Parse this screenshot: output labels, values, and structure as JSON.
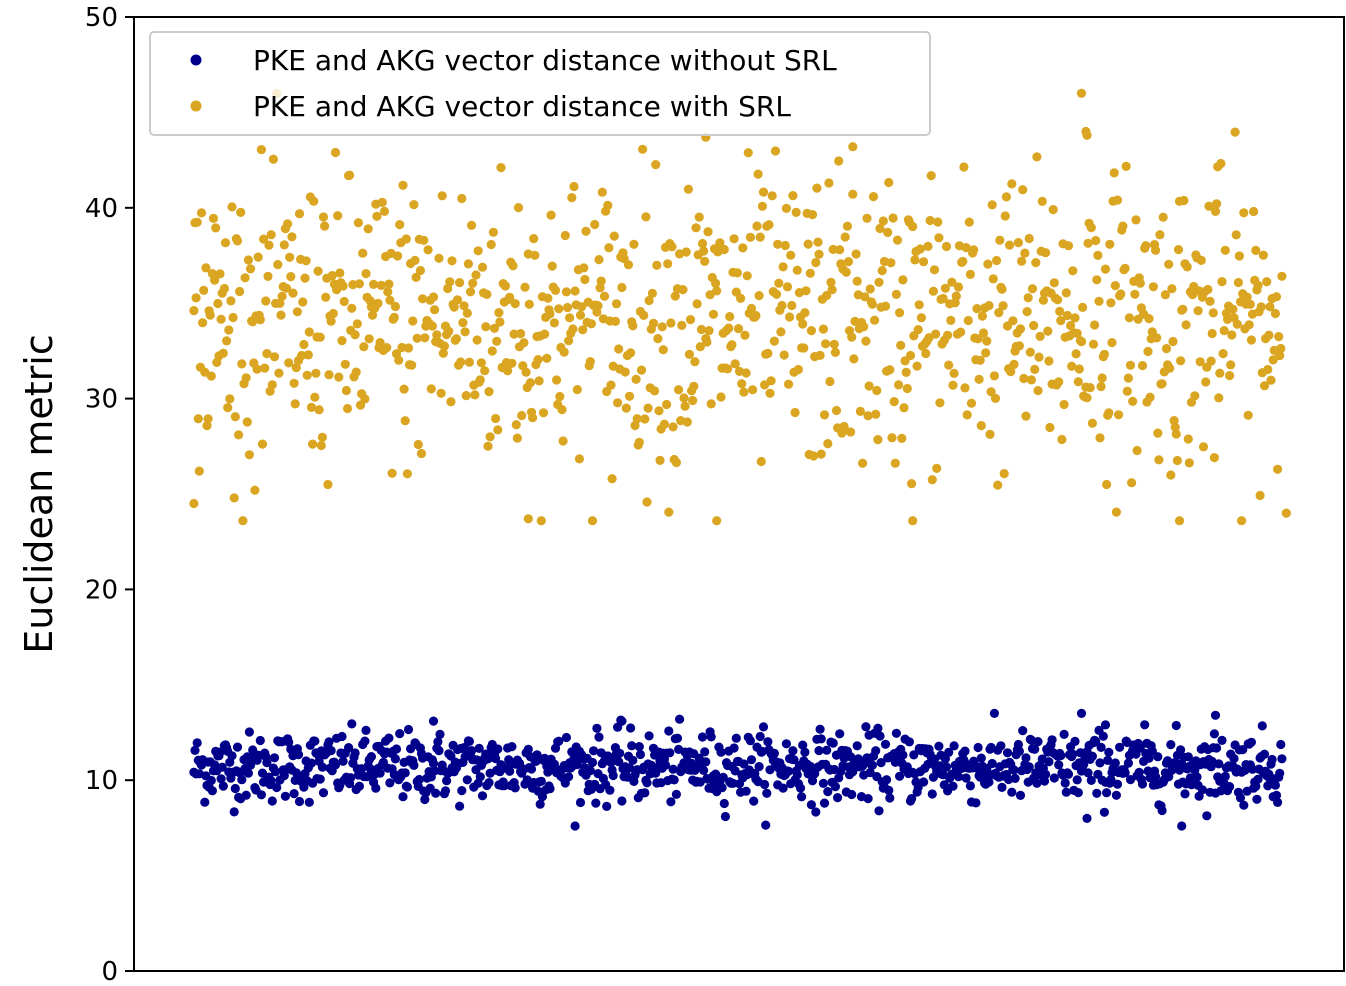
{
  "chart_data": {
    "type": "scatter",
    "title": "",
    "xlabel": "",
    "ylabel": "Euclidean metric",
    "xlim": [
      -55,
      1056
    ],
    "ylim": [
      0,
      50
    ],
    "yticks": [
      0,
      10,
      20,
      30,
      40,
      50
    ],
    "xticks": [],
    "grid": false,
    "legend_position": "top-left",
    "points_per_series": 1000,
    "series": [
      {
        "name": "PKE and AKG vector distance without SRL",
        "color": "#00008b",
        "mean": 10.7,
        "stddev": 0.9,
        "min": 7.6,
        "max": 13.5,
        "outliers": [
          [
            220,
            13.1
          ],
          [
            393,
            13.1
          ],
          [
            815,
            13.5
          ],
          [
            938,
            13.4
          ],
          [
            837,
            12.9
          ],
          [
            820,
            8.0
          ],
          [
            907,
            7.6
          ]
        ]
      },
      {
        "name": "PKE and AKG vector distance with SRL",
        "color": "#daa520",
        "mean": 34.0,
        "stddev": 3.8,
        "min": 23.6,
        "max": 46.0,
        "outliers": [
          [
            470,
            43.7
          ],
          [
            605,
            43.2
          ],
          [
            815,
            46.0
          ],
          [
            819,
            44.0
          ],
          [
            820,
            43.8
          ],
          [
            307,
            23.7
          ],
          [
            480,
            23.6
          ],
          [
            660,
            23.6
          ],
          [
            905,
            23.6
          ],
          [
            1003,
            24.0
          ],
          [
            0,
            24.5
          ]
        ]
      }
    ]
  }
}
